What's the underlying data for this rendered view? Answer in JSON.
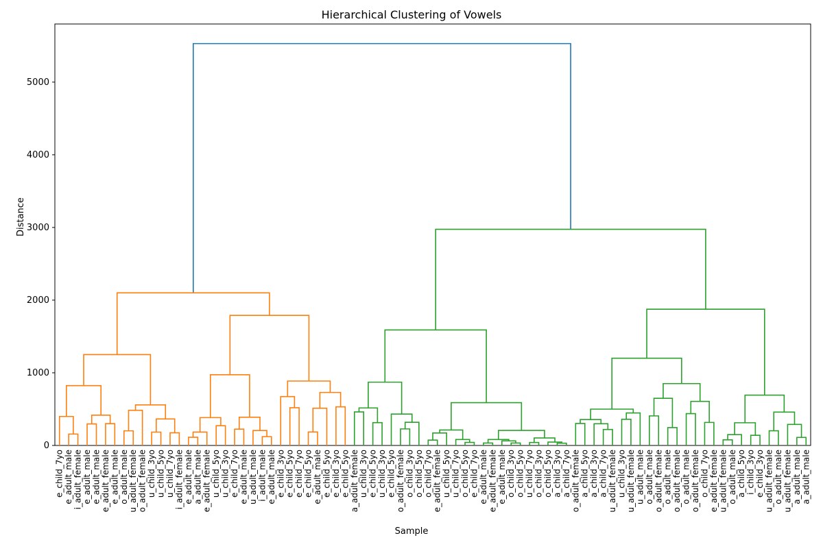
{
  "chart_data": {
    "type": "dendrogram",
    "title": "Hierarchical Clustering of Vowels",
    "xlabel": "Sample",
    "ylabel": "Distance",
    "ylim": [
      0,
      5800
    ],
    "yticks": [
      0,
      1000,
      2000,
      3000,
      4000,
      5000
    ],
    "grid": false,
    "colors": {
      "left_cluster": "#ff7f0e",
      "right_cluster": "#2ca02c",
      "root_link": "#1f77b4"
    },
    "root_height": 5530,
    "major_merges": [
      {
        "cluster": "left",
        "height": 2100
      },
      {
        "cluster": "right",
        "height": 2975
      },
      {
        "cluster": "right-left",
        "height": 1590
      },
      {
        "cluster": "right-right",
        "height": 1875
      },
      {
        "cluster": "left-right",
        "height": 1790
      },
      {
        "cluster": "left-left",
        "height": 1250
      }
    ],
    "leaf_labels": [
      "e_child_7yo",
      "e_adult_male",
      "i_adult_female",
      "e_adult_male",
      "e_adult_male",
      "e_adult_female",
      "e_adult_male",
      "o_adult_male",
      "u_adult_female",
      "o_adult_female",
      "u_child_3yo",
      "u_child_5yo",
      "u_child_7yo",
      "i_adult_female",
      "e_adult_male",
      "a_adult_male",
      "e_adult_female",
      "u_child_5yo",
      "u_child_3yo",
      "e_child_7yo",
      "e_adult_male",
      "u_adult_male",
      "i_adult_male",
      "e_adult_male",
      "e_child_3yo",
      "e_child_5yo",
      "e_child_7yo",
      "e_child_5yo",
      "e_adult_male",
      "e_child_5yo",
      "e_child_3yo",
      "e_child_5yo",
      "a_adult_female",
      "u_child_3yo",
      "e_child_5yo",
      "u_child_3yo",
      "e_child_5yo",
      "o_adult_female",
      "o_child_3yo",
      "o_child_5yo",
      "o_child_7yo",
      "e_adult_female",
      "u_child_5yo",
      "u_child_7yo",
      "o_child_5yo",
      "e_child_7yo",
      "e_adult_male",
      "e_adult_female",
      "e_adult_male",
      "o_child_3yo",
      "o_child_5yo",
      "u_child_7yo",
      "o_child_3yo",
      "o_child_5yo",
      "a_child_3yo",
      "a_child_7yo",
      "o_adult_female",
      "a_child_5yo",
      "a_child_3yo",
      "a_child_7yo",
      "u_adult_female",
      "u_child_3yo",
      "u_adult_female",
      "u_adult_male",
      "o_adult_male",
      "o_adult_female",
      "o_adult_male",
      "o_adult_female",
      "o_adult_male",
      "o_adult_female",
      "o_child_7yo",
      "e_adult_female",
      "u_adult_female",
      "o_adult_male",
      "a_child_5yo",
      "i_child_3yo",
      "e_child_3yo",
      "u_adult_female",
      "o_adult_male",
      "u_adult_female",
      "a_adult_male",
      "a_adult_male"
    ]
  }
}
